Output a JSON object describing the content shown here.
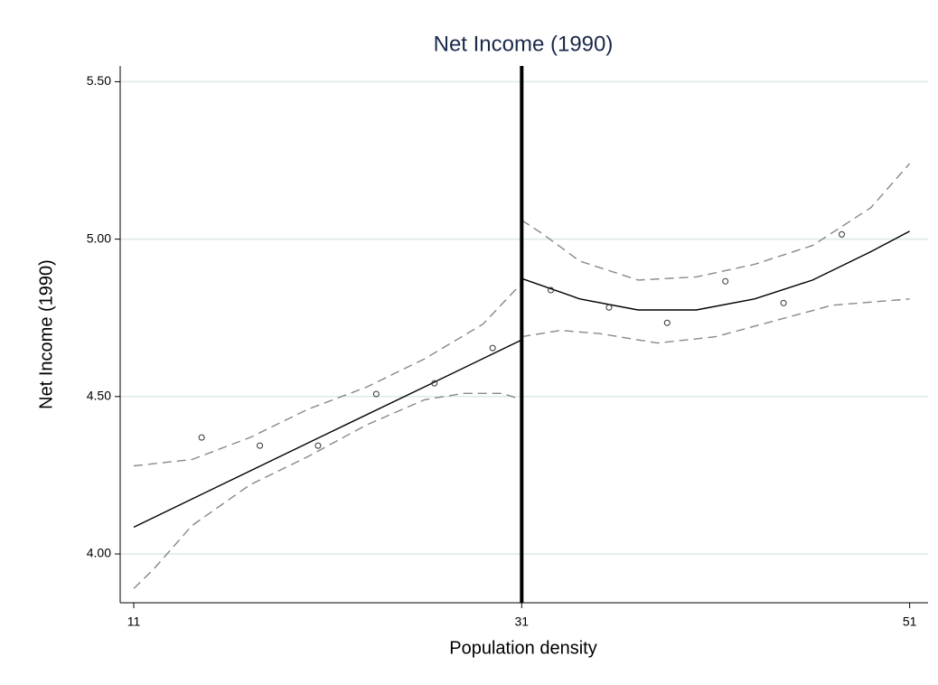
{
  "chart_data": {
    "type": "scatter",
    "title": "Net Income (1990)",
    "x_label": "Population density",
    "y_label": "Net Income (1990)",
    "xlim": [
      10.3,
      51.95
    ],
    "ylim": [
      3.845,
      5.55
    ],
    "xticks": [
      11,
      31,
      51
    ],
    "yticks": [
      {
        "value": 4.0,
        "label": "4.00"
      },
      {
        "value": 4.5,
        "label": "4.50"
      },
      {
        "value": 5.0,
        "label": "5.00"
      },
      {
        "value": 5.5,
        "label": "5.50"
      }
    ],
    "grid": true,
    "cutoff": 31,
    "points": {
      "color": "#333333",
      "x": [
        14.5,
        17.5,
        20.5,
        23.5,
        26.5,
        29.5,
        32.5,
        35.5,
        38.5,
        41.5,
        44.5,
        47.5
      ],
      "values": [
        4.37,
        4.344,
        4.344,
        4.508,
        4.542,
        4.654,
        4.838,
        4.783,
        4.734,
        4.866,
        4.797,
        5.015
      ]
    },
    "lines": [
      {
        "style": "solid",
        "color": "#000000",
        "x": [
          11,
          16,
          21,
          26,
          31
        ],
        "values": [
          4.085,
          4.234,
          4.383,
          4.531,
          4.68
        ]
      },
      {
        "style": "dashed",
        "color": "#888888",
        "x": [
          11,
          14,
          17,
          20,
          23,
          26,
          29,
          31
        ],
        "values": [
          4.28,
          4.3,
          4.37,
          4.46,
          4.53,
          4.62,
          4.73,
          4.86
        ]
      },
      {
        "style": "dashed",
        "color": "#888888",
        "x": [
          11,
          12,
          14,
          17,
          20,
          23,
          26,
          28,
          30,
          31
        ],
        "values": [
          3.89,
          3.95,
          4.09,
          4.22,
          4.31,
          4.41,
          4.49,
          4.51,
          4.51,
          4.49
        ]
      },
      {
        "style": "solid",
        "color": "#000000",
        "x": [
          31,
          34,
          37,
          40,
          43,
          46,
          49,
          51
        ],
        "values": [
          4.875,
          4.81,
          4.775,
          4.775,
          4.81,
          4.87,
          4.96,
          5.025
        ]
      },
      {
        "style": "dashed",
        "color": "#888888",
        "x": [
          31,
          32,
          34,
          37,
          40,
          43,
          46,
          49,
          51
        ],
        "values": [
          5.06,
          5.02,
          4.93,
          4.87,
          4.88,
          4.92,
          4.98,
          5.1,
          5.24
        ]
      },
      {
        "style": "dashed",
        "color": "#888888",
        "x": [
          31,
          33,
          35,
          38,
          41,
          44,
          47,
          49,
          51
        ],
        "values": [
          4.69,
          4.71,
          4.7,
          4.67,
          4.69,
          4.74,
          4.79,
          4.8,
          4.81
        ]
      }
    ]
  }
}
